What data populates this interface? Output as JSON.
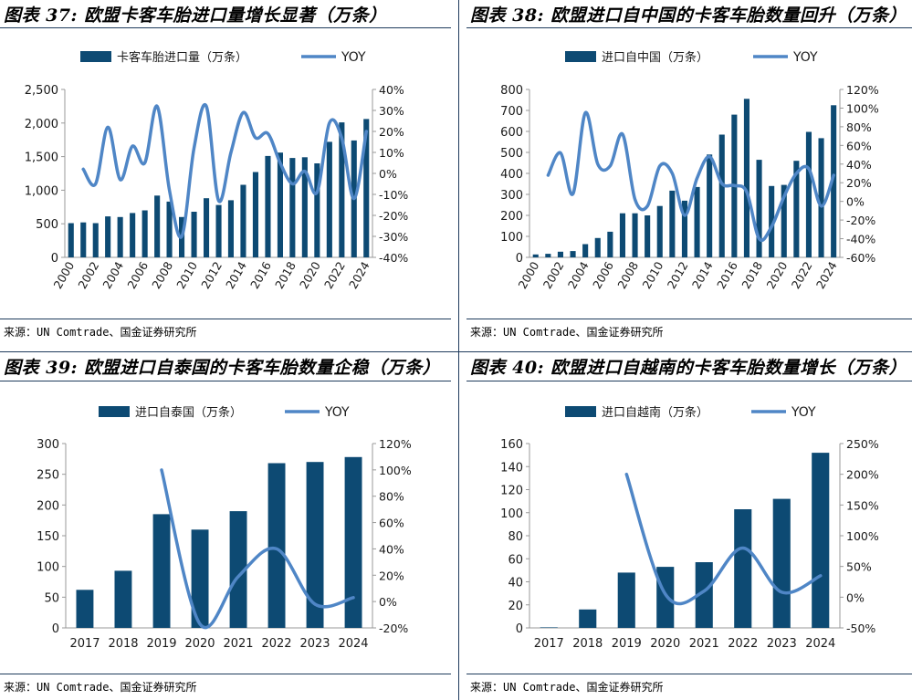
{
  "source_text": "来源：UN Comtrade、国金证券研究所",
  "colors": {
    "bar": "#0d4a73",
    "line": "#4f86c6",
    "rule": "#1f3b5c"
  },
  "chart_data": [
    {
      "id": "fig37",
      "title": "图表 37: 欧盟卡客车胎进口量增长显著（万条）",
      "type": "bar+line",
      "legend": {
        "bar": "卡客车胎进口量（万条）",
        "line": "YOY"
      },
      "categories": [
        "2000",
        "2001",
        "2002",
        "2003",
        "2004",
        "2005",
        "2006",
        "2007",
        "2008",
        "2009",
        "2010",
        "2011",
        "2012",
        "2013",
        "2014",
        "2015",
        "2016",
        "2017",
        "2018",
        "2019",
        "2020",
        "2021",
        "2022",
        "2023",
        "2024"
      ],
      "xtick_labels": [
        "2000",
        "2002",
        "2004",
        "2006",
        "2008",
        "2010",
        "2012",
        "2014",
        "2016",
        "2018",
        "2020",
        "2022",
        "2024"
      ],
      "bar_values": [
        510,
        520,
        510,
        610,
        600,
        660,
        700,
        920,
        830,
        600,
        680,
        880,
        780,
        850,
        1080,
        1270,
        1510,
        1560,
        1480,
        1490,
        1400,
        1720,
        2010,
        1740,
        2060
      ],
      "yoy_values": [
        null,
        2,
        -5,
        22,
        -3,
        13,
        5,
        32,
        -8,
        -30,
        12,
        32,
        -13,
        10,
        29,
        17,
        19,
        5,
        -5,
        1,
        -9,
        24,
        17,
        -12,
        20
      ],
      "ylim_left": [
        0,
        2500
      ],
      "yticks_left": [
        0,
        500,
        1000,
        1500,
        2000,
        2500
      ],
      "ytick_labels_left": [
        "0",
        "500",
        "1,000",
        "1,500",
        "2,000",
        "2,500"
      ],
      "ylim_right": [
        -40,
        40
      ],
      "yticks_right": [
        -40,
        -30,
        -20,
        -10,
        0,
        10,
        20,
        30,
        40
      ],
      "ytick_labels_right": [
        "-40%",
        "-30%",
        "-20%",
        "-10%",
        "0%",
        "10%",
        "20%",
        "30%",
        "40%"
      ]
    },
    {
      "id": "fig38",
      "title": "图表 38: 欧盟进口自中国的卡客车胎数量回升（万条）",
      "type": "bar+line",
      "legend": {
        "bar": "进口自中国（万条）",
        "line": "YOY"
      },
      "categories": [
        "2000",
        "2001",
        "2002",
        "2003",
        "2004",
        "2005",
        "2006",
        "2007",
        "2008",
        "2009",
        "2010",
        "2011",
        "2012",
        "2013",
        "2014",
        "2015",
        "2016",
        "2017",
        "2018",
        "2019",
        "2020",
        "2021",
        "2022",
        "2023",
        "2024"
      ],
      "xtick_labels": [
        "2000",
        "2002",
        "2004",
        "2006",
        "2008",
        "2010",
        "2012",
        "2014",
        "2016",
        "2018",
        "2020",
        "2022",
        "2024"
      ],
      "bar_values": [
        14,
        17,
        27,
        30,
        63,
        92,
        122,
        210,
        210,
        200,
        245,
        318,
        270,
        335,
        490,
        585,
        680,
        755,
        465,
        340,
        345,
        460,
        598,
        568,
        725
      ],
      "yoy_values": [
        null,
        28,
        52,
        8,
        95,
        40,
        38,
        72,
        2,
        -5,
        38,
        30,
        -15,
        25,
        48,
        19,
        17,
        10,
        -40,
        -27,
        5,
        30,
        35,
        -5,
        28
      ],
      "ylim_left": [
        0,
        800
      ],
      "yticks_left": [
        0,
        100,
        200,
        300,
        400,
        500,
        600,
        700,
        800
      ],
      "ytick_labels_left": [
        "0",
        "100",
        "200",
        "300",
        "400",
        "500",
        "600",
        "700",
        "800"
      ],
      "ylim_right": [
        -60,
        120
      ],
      "yticks_right": [
        -60,
        -40,
        -20,
        0,
        20,
        40,
        60,
        80,
        100,
        120
      ],
      "ytick_labels_right": [
        "-60%",
        "-40%",
        "-20%",
        "0%",
        "20%",
        "40%",
        "60%",
        "80%",
        "100%",
        "120%"
      ]
    },
    {
      "id": "fig39",
      "title": "图表 39: 欧盟进口自泰国的卡客车胎数量企稳（万条）",
      "type": "bar+line",
      "legend": {
        "bar": "进口自泰国（万条）",
        "line": "YOY"
      },
      "categories": [
        "2017",
        "2018",
        "2019",
        "2020",
        "2021",
        "2022",
        "2023",
        "2024"
      ],
      "xtick_labels": [
        "2017",
        "2018",
        "2019",
        "2020",
        "2021",
        "2022",
        "2023",
        "2024"
      ],
      "bar_values": [
        62,
        93,
        185,
        160,
        190,
        268,
        270,
        278
      ],
      "yoy_values": [
        null,
        null,
        100,
        -17,
        19,
        40,
        -2,
        3
      ],
      "ylim_left": [
        0,
        300
      ],
      "yticks_left": [
        0,
        50,
        100,
        150,
        200,
        250,
        300
      ],
      "ytick_labels_left": [
        "0",
        "50",
        "100",
        "150",
        "200",
        "250",
        "300"
      ],
      "ylim_right": [
        -20,
        120
      ],
      "yticks_right": [
        -20,
        0,
        20,
        40,
        60,
        80,
        100,
        120
      ],
      "ytick_labels_right": [
        "-20%",
        "0%",
        "20%",
        "40%",
        "60%",
        "80%",
        "100%",
        "120%"
      ]
    },
    {
      "id": "fig40",
      "title": "图表 40: 欧盟进口自越南的卡客车胎数量增长（万条）",
      "type": "bar+line",
      "legend": {
        "bar": "进口自越南（万条）",
        "line": "YOY"
      },
      "categories": [
        "2017",
        "2018",
        "2019",
        "2020",
        "2021",
        "2022",
        "2023",
        "2024"
      ],
      "xtick_labels": [
        "2017",
        "2018",
        "2019",
        "2020",
        "2021",
        "2022",
        "2023",
        "2024"
      ],
      "bar_values": [
        0.5,
        16,
        48,
        53,
        57,
        103,
        112,
        152
      ],
      "yoy_values": [
        null,
        null,
        200,
        5,
        10,
        80,
        8,
        35
      ],
      "ylim_left": [
        0,
        160
      ],
      "yticks_left": [
        0,
        20,
        40,
        60,
        80,
        100,
        120,
        140,
        160
      ],
      "ytick_labels_left": [
        "0",
        "20",
        "40",
        "60",
        "80",
        "100",
        "120",
        "140",
        "160"
      ],
      "ylim_right": [
        -50,
        250
      ],
      "yticks_right": [
        -50,
        0,
        50,
        100,
        150,
        200,
        250
      ],
      "ytick_labels_right": [
        "-50%",
        "0%",
        "50%",
        "100%",
        "150%",
        "200%",
        "250%"
      ]
    }
  ]
}
